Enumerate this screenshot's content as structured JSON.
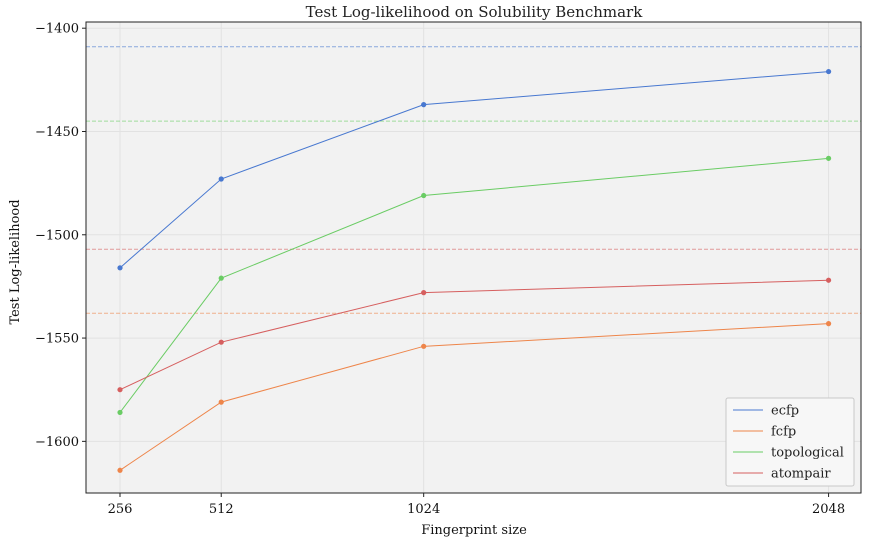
{
  "chart_data": {
    "type": "line",
    "title": "Test Log-likelihood on Solubility Benchmark",
    "xlabel": "Fingerprint size",
    "ylabel": "Test Log-likelihood",
    "x": [
      256,
      512,
      1024,
      2048
    ],
    "x_tick_labels": [
      "256",
      "512",
      "1024",
      "2048"
    ],
    "xlim": [
      170,
      2130
    ],
    "ylim": [
      -1625,
      -1397
    ],
    "y_ticks": [
      -1400,
      -1450,
      -1500,
      -1550,
      -1600
    ],
    "y_tick_labels": [
      "−1400",
      "−1450",
      "−1500",
      "−1550",
      "−1600"
    ],
    "grid": true,
    "legend_position": "lower-right",
    "background_color": "#f2f2f2",
    "series": [
      {
        "name": "ecfp",
        "color": "#4878d0",
        "values": [
          -1516,
          -1473,
          -1437,
          -1421
        ],
        "baseline": -1409
      },
      {
        "name": "fcfp",
        "color": "#ee854a",
        "values": [
          -1614,
          -1581,
          -1554,
          -1543
        ],
        "baseline": -1538
      },
      {
        "name": "topological",
        "color": "#6acc64",
        "values": [
          -1586,
          -1521,
          -1481,
          -1463
        ],
        "baseline": -1445
      },
      {
        "name": "atompair",
        "color": "#d65f5f",
        "values": [
          -1575,
          -1552,
          -1528,
          -1522
        ],
        "baseline": -1507
      }
    ]
  }
}
